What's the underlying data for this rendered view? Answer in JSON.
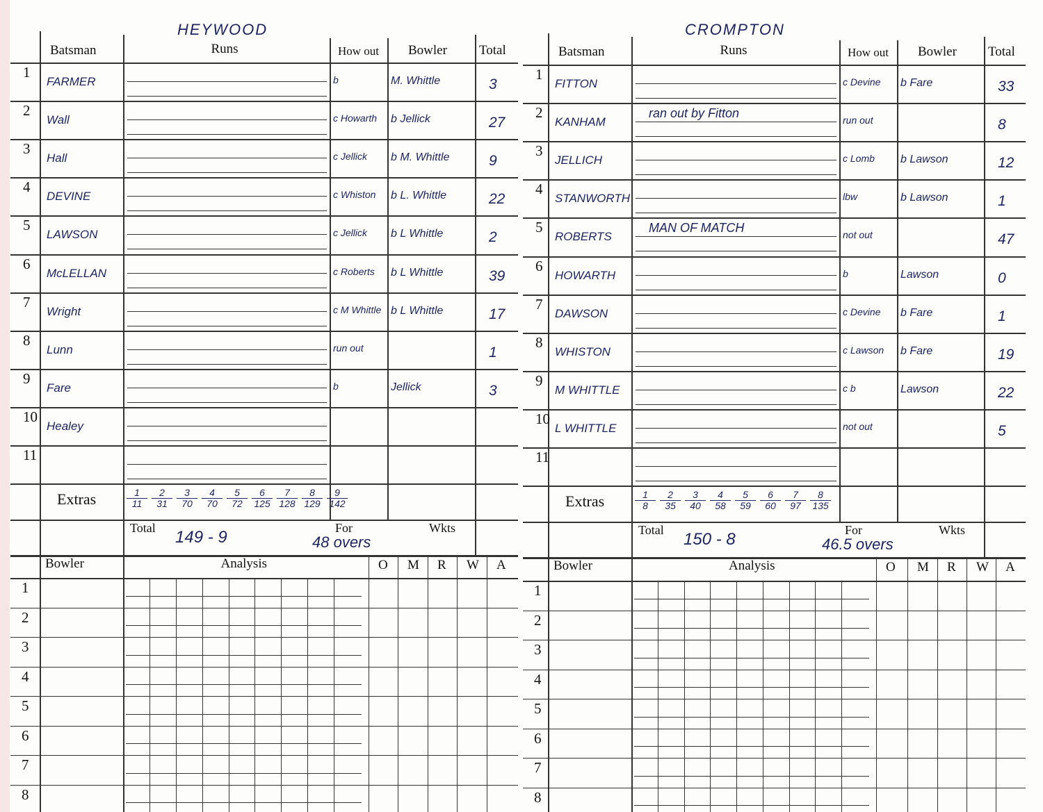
{
  "headers": {
    "batsman": "Batsman",
    "runs": "Runs",
    "how_out": "How out",
    "bowler": "Bowler",
    "total": "Total",
    "extras": "Extras",
    "total_label": "Total",
    "for": "For",
    "wkts": "Wkts",
    "bowling_bowler": "Bowler",
    "analysis": "Analysis",
    "o": "O",
    "m": "M",
    "r": "R",
    "w": "W",
    "a": "A"
  },
  "innings": [
    {
      "team": "HEYWOOD",
      "batting": [
        {
          "no": "1",
          "name": "FARMER",
          "runs_note": "",
          "how_out": "b",
          "bowler": "M. Whittle",
          "total": "3"
        },
        {
          "no": "2",
          "name": "Wall",
          "runs_note": "",
          "how_out": "c Howarth",
          "bowler": "b Jellick",
          "total": "27"
        },
        {
          "no": "3",
          "name": "Hall",
          "runs_note": "",
          "how_out": "c Jellick",
          "bowler": "b M. Whittle",
          "total": "9"
        },
        {
          "no": "4",
          "name": "DEVINE",
          "runs_note": "",
          "how_out": "c Whiston",
          "bowler": "b L. Whittle",
          "total": "22"
        },
        {
          "no": "5",
          "name": "LAWSON",
          "runs_note": "",
          "how_out": "c Jellick",
          "bowler": "b L Whittle",
          "total": "2"
        },
        {
          "no": "6",
          "name": "McLELLAN",
          "runs_note": "",
          "how_out": "c Roberts",
          "bowler": "b L Whittle",
          "total": "39"
        },
        {
          "no": "7",
          "name": "Wright",
          "runs_note": "",
          "how_out": "c M Whittle",
          "bowler": "b L Whittle",
          "total": "17"
        },
        {
          "no": "8",
          "name": "Lunn",
          "runs_note": "",
          "how_out": "run out",
          "bowler": "",
          "total": "1"
        },
        {
          "no": "9",
          "name": "Fare",
          "runs_note": "",
          "how_out": "b",
          "bowler": "Jellick",
          "total": "3"
        },
        {
          "no": "10",
          "name": "Healey",
          "runs_note": "",
          "how_out": "",
          "bowler": "",
          "total": ""
        },
        {
          "no": "11",
          "name": "",
          "runs_note": "",
          "how_out": "",
          "bowler": "",
          "total": ""
        }
      ],
      "fall_of_wickets": [
        {
          "w": "1",
          "r": "11"
        },
        {
          "w": "2",
          "r": "31"
        },
        {
          "w": "3",
          "r": "70"
        },
        {
          "w": "4",
          "r": "70"
        },
        {
          "w": "5",
          "r": "72"
        },
        {
          "w": "6",
          "r": "125"
        },
        {
          "w": "7",
          "r": "128"
        },
        {
          "w": "8",
          "r": "129"
        },
        {
          "w": "9",
          "r": "142"
        }
      ],
      "total": "149 - 9",
      "overs": "48 overs",
      "bowling_rows": [
        "1",
        "2",
        "3",
        "4",
        "5",
        "6",
        "7",
        "8"
      ]
    },
    {
      "team": "CROMPTON",
      "batting": [
        {
          "no": "1",
          "name": "FITTON",
          "runs_note": "",
          "how_out": "c Devine",
          "bowler": "b Fare",
          "total": "33"
        },
        {
          "no": "2",
          "name": "KANHAM",
          "runs_note": "ran out by Fitton",
          "how_out": "run out",
          "bowler": "",
          "total": "8"
        },
        {
          "no": "3",
          "name": "JELLICH",
          "runs_note": "",
          "how_out": "c Lomb",
          "bowler": "b Lawson",
          "total": "12"
        },
        {
          "no": "4",
          "name": "STANWORTH",
          "runs_note": "",
          "how_out": "lbw",
          "bowler": "b Lawson",
          "total": "1"
        },
        {
          "no": "5",
          "name": "ROBERTS",
          "runs_note": "MAN OF MATCH",
          "how_out": "not out",
          "bowler": "",
          "total": "47"
        },
        {
          "no": "6",
          "name": "HOWARTH",
          "runs_note": "",
          "how_out": "b",
          "bowler": "Lawson",
          "total": "0"
        },
        {
          "no": "7",
          "name": "DAWSON",
          "runs_note": "",
          "how_out": "c Devine",
          "bowler": "b Fare",
          "total": "1"
        },
        {
          "no": "8",
          "name": "WHISTON",
          "runs_note": "",
          "how_out": "c Lawson",
          "bowler": "b Fare",
          "total": "19"
        },
        {
          "no": "9",
          "name": "M WHITTLE",
          "runs_note": "",
          "how_out": "c b",
          "bowler": "Lawson",
          "total": "22"
        },
        {
          "no": "10",
          "name": "L WHITTLE",
          "runs_note": "",
          "how_out": "not out",
          "bowler": "",
          "total": "5"
        },
        {
          "no": "11",
          "name": "",
          "runs_note": "",
          "how_out": "",
          "bowler": "",
          "total": ""
        }
      ],
      "fall_of_wickets": [
        {
          "w": "1",
          "r": "8"
        },
        {
          "w": "2",
          "r": "35"
        },
        {
          "w": "3",
          "r": "40"
        },
        {
          "w": "4",
          "r": "58"
        },
        {
          "w": "5",
          "r": "59"
        },
        {
          "w": "6",
          "r": "60"
        },
        {
          "w": "7",
          "r": "97"
        },
        {
          "w": "8",
          "r": "135"
        }
      ],
      "total": "150 - 8",
      "overs": "46.5 overs",
      "bowling_rows": [
        "1",
        "2",
        "3",
        "4",
        "5",
        "6",
        "7",
        "8"
      ]
    }
  ],
  "colors": {
    "ink": "#1d2560",
    "print": "#111111",
    "paper": "#fdfdfb"
  }
}
